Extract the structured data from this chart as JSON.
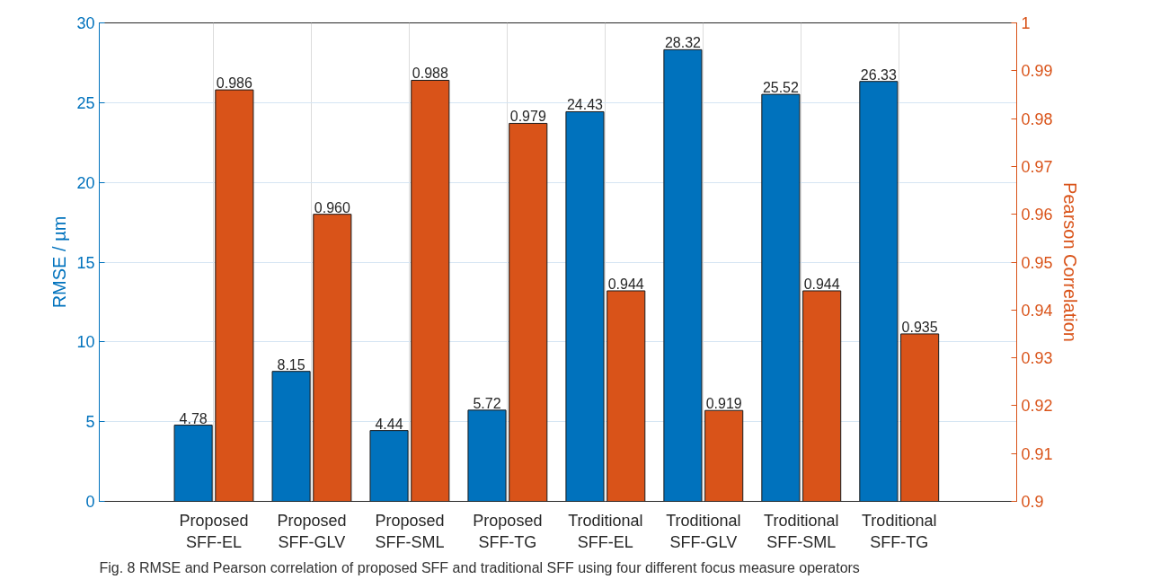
{
  "chart_data": {
    "type": "bar",
    "categories": [
      "Proposed\nSFF-EL",
      "Proposed\nSFF-GLV",
      "Proposed\nSFF-SML",
      "Proposed\nSFF-TG",
      "Troditional\nSFF-EL",
      "Troditional\nSFF-GLV",
      "Troditional\nSFF-SML",
      "Troditional\nSFF-TG"
    ],
    "ylabel": "RMSE / µm",
    "y2label": "Pearson Correlation",
    "ylim": [
      0,
      30
    ],
    "yticks": [
      0,
      5,
      10,
      15,
      20,
      25,
      30
    ],
    "y2lim": [
      0.9,
      1
    ],
    "y2ticks": [
      0.9,
      0.91,
      0.92,
      0.93,
      0.94,
      0.95,
      0.96,
      0.97,
      0.98,
      0.99,
      1
    ],
    "series": [
      {
        "color": "#0072bd",
        "values": [
          4.78,
          8.15,
          4.44,
          5.72,
          24.43,
          28.32,
          25.52,
          26.33
        ],
        "value_labels": [
          "4.78",
          "8.15",
          "4.44",
          "5.72",
          "24.43",
          "28.32",
          "25.52",
          "26.33"
        ]
      },
      {
        "color": "#d95319",
        "axis": "y2",
        "values": [
          0.986,
          0.96,
          0.988,
          0.979,
          0.944,
          0.919,
          0.944,
          0.935
        ],
        "value_labels": [
          "0.986",
          "0.960",
          "0.988",
          "0.979",
          "0.944",
          "0.919",
          "0.944",
          "0.935"
        ]
      }
    ],
    "grid": true,
    "annotations": [
      "Fig. 8  RMSE and Pearson correlation of proposed SFF and traditional SFF using four different focus measure operators"
    ]
  }
}
